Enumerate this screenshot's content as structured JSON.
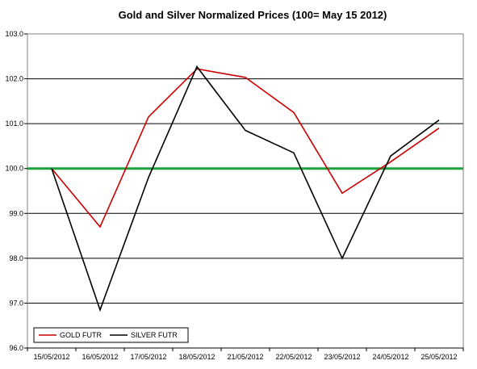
{
  "chart_data": {
    "type": "line",
    "title": "Gold and Silver Normalized Prices  (100= May 15 2012)",
    "xlabel": "",
    "ylabel": "",
    "categories": [
      "15/05/2012",
      "16/05/2012",
      "17/05/2012",
      "18/05/2012",
      "21/05/2012",
      "22/05/2012",
      "23/05/2012",
      "24/05/2012",
      "25/05/2012"
    ],
    "series": [
      {
        "name": "GOLD  FUTR",
        "color": "#cc0000",
        "values": [
          100.0,
          98.7,
          101.15,
          102.22,
          102.03,
          101.25,
          99.45,
          100.15,
          100.9
        ]
      },
      {
        "name": "SILVER  FUTR",
        "color": "#000000",
        "values": [
          100.0,
          96.85,
          99.8,
          102.27,
          100.85,
          100.35,
          98.0,
          100.28,
          101.08
        ]
      }
    ],
    "reference_line": {
      "value": 100.0,
      "color": "#1aa33a"
    },
    "ylim": [
      96.0,
      103.0
    ],
    "yticks": [
      "96.0",
      "97.0",
      "98.0",
      "99.0",
      "100.0",
      "101.0",
      "102.0",
      "103.0"
    ],
    "grid": "horizontal",
    "legend_position": "bottom-left"
  }
}
